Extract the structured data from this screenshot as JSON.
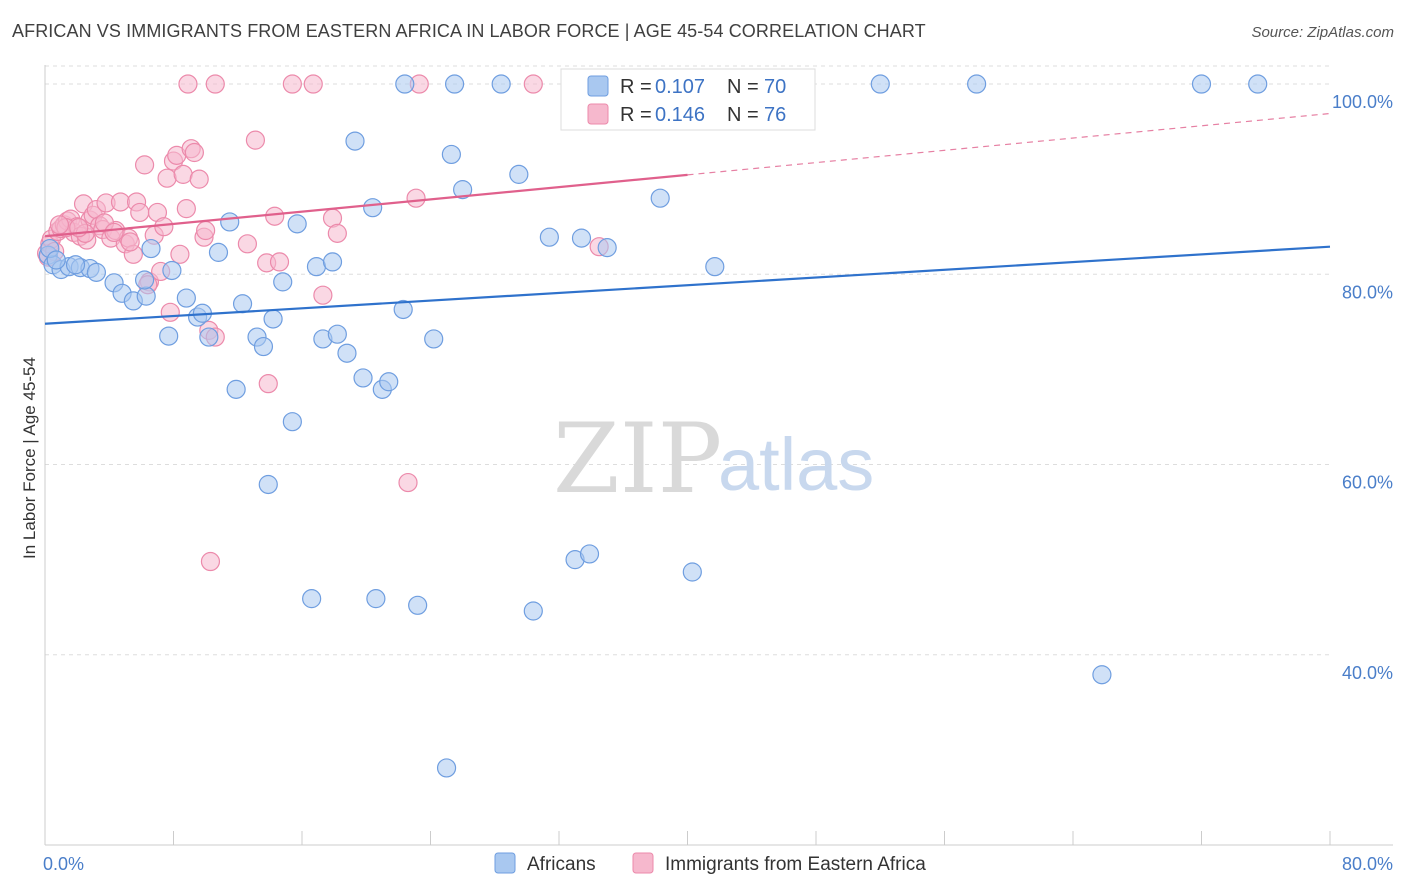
{
  "title": "AFRICAN VS IMMIGRANTS FROM EASTERN AFRICA IN LABOR FORCE | AGE 45-54 CORRELATION CHART",
  "source": "Source: ZipAtlas.com",
  "watermark": {
    "zip": "ZIP",
    "atlas": "atlas"
  },
  "colors": {
    "africans_fill": "#a9c8f0",
    "africans_stroke": "#6f9ee0",
    "africans_line": "#2f72cc",
    "eastern_fill": "#f6b8cd",
    "eastern_stroke": "#ec8aab",
    "eastern_line": "#e0608c",
    "axis_text": "#4a7ec9",
    "grid": "#dddddd"
  },
  "legend": {
    "r_label": "R =",
    "n_label": "N =",
    "africans": {
      "r": "0.107",
      "n": "70"
    },
    "eastern": {
      "r": "0.146",
      "n": "76"
    }
  },
  "chart_data": {
    "type": "scatter",
    "title": "AFRICAN VS IMMIGRANTS FROM EASTERN AFRICA IN LABOR FORCE | AGE 45-54 CORRELATION CHART",
    "xlabel": "",
    "ylabel": "In Labor Force | Age 45-54",
    "xlim": [
      0,
      80
    ],
    "ylim": [
      20,
      102
    ],
    "x_tick_labels": [
      "0.0%",
      "80.0%"
    ],
    "y_ticks": [
      40,
      60,
      80,
      100
    ],
    "y_tick_labels": [
      "40.0%",
      "60.0%",
      "80.0%",
      "100.0%"
    ],
    "grid": true,
    "legend_position": "top-center",
    "series": [
      {
        "name": "Africans",
        "trend": {
          "x": [
            0,
            80
          ],
          "y": [
            74.8,
            82.9
          ],
          "dashed_from": null
        },
        "points": [
          [
            0.2,
            82.0
          ],
          [
            0.5,
            81.0
          ],
          [
            1.0,
            80.5
          ],
          [
            1.5,
            80.8
          ],
          [
            2.2,
            80.7
          ],
          [
            2.8,
            80.6
          ],
          [
            3.2,
            80.2
          ],
          [
            4.3,
            79.1
          ],
          [
            4.8,
            78.0
          ],
          [
            5.5,
            77.2
          ],
          [
            6.3,
            77.7
          ],
          [
            6.6,
            82.7
          ],
          [
            6.2,
            79.4
          ],
          [
            7.9,
            80.4
          ],
          [
            7.7,
            73.5
          ],
          [
            8.8,
            77.5
          ],
          [
            9.5,
            75.5
          ],
          [
            9.8,
            75.9
          ],
          [
            10.2,
            73.4
          ],
          [
            10.8,
            82.3
          ],
          [
            11.5,
            85.5
          ],
          [
            11.9,
            67.9
          ],
          [
            12.3,
            76.9
          ],
          [
            13.2,
            73.4
          ],
          [
            13.6,
            72.4
          ],
          [
            13.9,
            57.9
          ],
          [
            14.2,
            75.3
          ],
          [
            14.8,
            79.2
          ],
          [
            15.4,
            64.5
          ],
          [
            15.7,
            85.3
          ],
          [
            16.6,
            45.9
          ],
          [
            16.9,
            80.8
          ],
          [
            17.3,
            73.2
          ],
          [
            17.9,
            81.3
          ],
          [
            18.2,
            73.7
          ],
          [
            18.8,
            71.7
          ],
          [
            19.3,
            94.0
          ],
          [
            19.8,
            69.1
          ],
          [
            20.6,
            45.9
          ],
          [
            20.4,
            87.0
          ],
          [
            21.0,
            67.9
          ],
          [
            21.4,
            68.7
          ],
          [
            22.3,
            76.3
          ],
          [
            23.2,
            45.2
          ],
          [
            24.2,
            73.2
          ],
          [
            25.3,
            92.6
          ],
          [
            26.0,
            88.9
          ],
          [
            25.0,
            28.1
          ],
          [
            28.4,
            100.0
          ],
          [
            29.5,
            90.5
          ],
          [
            30.4,
            44.6
          ],
          [
            31.4,
            83.9
          ],
          [
            33.0,
            50.0
          ],
          [
            33.9,
            50.6
          ],
          [
            33.4,
            83.8
          ],
          [
            35.0,
            82.8
          ],
          [
            38.3,
            88.0
          ],
          [
            40.3,
            48.7
          ],
          [
            41.7,
            80.8
          ],
          [
            22.4,
            100.0
          ],
          [
            25.5,
            100.0
          ],
          [
            43.0,
            100.0
          ],
          [
            52.0,
            100.0
          ],
          [
            58.0,
            100.0
          ],
          [
            72.0,
            100.0
          ],
          [
            75.5,
            100.0
          ],
          [
            65.8,
            37.9
          ],
          [
            0.3,
            82.7
          ],
          [
            0.7,
            81.5
          ],
          [
            1.9,
            81.0
          ]
        ]
      },
      {
        "name": "Immigrants from Eastern Africa",
        "trend": {
          "x": [
            0,
            80
          ],
          "y": [
            84.0,
            96.9
          ],
          "dashed_from": 40
        },
        "points": [
          [
            0.1,
            82.2
          ],
          [
            0.2,
            81.8
          ],
          [
            0.3,
            83.2
          ],
          [
            0.4,
            83.7
          ],
          [
            0.6,
            82.4
          ],
          [
            0.8,
            84.5
          ],
          [
            1.0,
            84.8
          ],
          [
            1.2,
            85.2
          ],
          [
            1.4,
            85.6
          ],
          [
            1.6,
            85.8
          ],
          [
            1.8,
            84.4
          ],
          [
            2.0,
            85.0
          ],
          [
            2.2,
            84.0
          ],
          [
            2.4,
            87.4
          ],
          [
            2.6,
            83.6
          ],
          [
            2.8,
            85.7
          ],
          [
            3.0,
            86.2
          ],
          [
            3.2,
            86.8
          ],
          [
            3.4,
            85.1
          ],
          [
            3.6,
            84.7
          ],
          [
            3.8,
            87.5
          ],
          [
            4.1,
            83.8
          ],
          [
            4.4,
            84.6
          ],
          [
            4.7,
            87.6
          ],
          [
            5.0,
            83.2
          ],
          [
            5.2,
            83.8
          ],
          [
            5.5,
            82.1
          ],
          [
            5.7,
            87.6
          ],
          [
            5.9,
            86.5
          ],
          [
            6.2,
            91.5
          ],
          [
            6.5,
            79.2
          ],
          [
            6.8,
            84.1
          ],
          [
            7.0,
            86.5
          ],
          [
            7.2,
            80.3
          ],
          [
            7.4,
            85.0
          ],
          [
            7.6,
            90.1
          ],
          [
            7.8,
            76.0
          ],
          [
            8.0,
            91.9
          ],
          [
            8.2,
            92.5
          ],
          [
            8.4,
            82.1
          ],
          [
            8.6,
            90.5
          ],
          [
            8.8,
            86.9
          ],
          [
            9.1,
            93.2
          ],
          [
            9.3,
            92.8
          ],
          [
            9.6,
            90.0
          ],
          [
            9.9,
            83.9
          ],
          [
            10.0,
            84.6
          ],
          [
            10.2,
            74.1
          ],
          [
            10.3,
            49.8
          ],
          [
            10.6,
            73.4
          ],
          [
            8.9,
            100.0
          ],
          [
            10.6,
            100.0
          ],
          [
            12.6,
            83.2
          ],
          [
            13.1,
            94.1
          ],
          [
            13.8,
            81.2
          ],
          [
            13.9,
            68.5
          ],
          [
            14.3,
            86.1
          ],
          [
            14.6,
            81.3
          ],
          [
            17.3,
            77.8
          ],
          [
            17.9,
            85.9
          ],
          [
            18.2,
            84.3
          ],
          [
            22.6,
            58.1
          ],
          [
            23.1,
            88.0
          ],
          [
            15.4,
            100.0
          ],
          [
            16.7,
            100.0
          ],
          [
            23.3,
            100.0
          ],
          [
            30.4,
            100.0
          ],
          [
            34.5,
            82.9
          ],
          [
            2.5,
            84.3
          ],
          [
            3.7,
            85.4
          ],
          [
            4.3,
            84.4
          ],
          [
            5.3,
            83.4
          ],
          [
            6.4,
            78.9
          ],
          [
            1.3,
            84.9
          ],
          [
            0.9,
            85.2
          ],
          [
            2.1,
            84.9
          ]
        ]
      }
    ]
  },
  "bottom_legend": {
    "africans": "Africans",
    "eastern": "Immigrants from Eastern Africa"
  }
}
